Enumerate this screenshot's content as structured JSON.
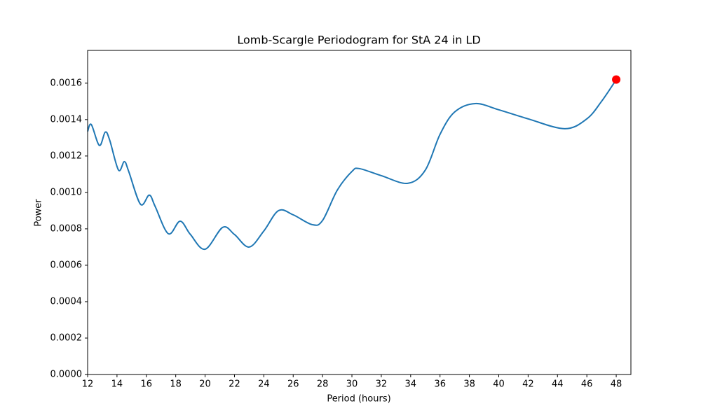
{
  "chart_data": {
    "type": "line",
    "title": "Lomb-Scargle Periodogram for StA 24 in LD",
    "x_label": "Period (hours)",
    "y_label": "Power",
    "x": [
      12.0,
      12.25,
      12.8,
      13.2,
      13.5,
      14.1,
      14.5,
      14.8,
      15.6,
      16.2,
      16.6,
      17.5,
      18.3,
      19.0,
      20.0,
      21.2,
      22.0,
      23.0,
      24.0,
      25.0,
      26.0,
      27.3,
      28.0,
      29.0,
      30.0,
      30.5,
      32.0,
      33.8,
      35.0,
      36.0,
      37.0,
      38.4,
      40.0,
      42.0,
      44.5,
      46.0,
      47.0,
      48.0
    ],
    "series": [
      {
        "color": "#1f77b4",
        "values": [
          0.001335,
          0.001373,
          0.001258,
          0.001331,
          0.001288,
          0.001123,
          0.001169,
          0.001115,
          0.000935,
          0.000985,
          0.000923,
          0.000773,
          0.000842,
          0.000769,
          0.000688,
          0.000808,
          0.000769,
          0.0007,
          0.000788,
          0.0009,
          0.000877,
          0.000823,
          0.000846,
          0.001012,
          0.001115,
          0.001131,
          0.001092,
          0.00105,
          0.001123,
          0.001319,
          0.001442,
          0.001488,
          0.001454,
          0.001404,
          0.00135,
          0.001404,
          0.0015,
          0.001619
        ]
      }
    ],
    "highlight": {
      "x": 48,
      "y": 0.00162,
      "color": "#ff0000"
    },
    "xlim": [
      12,
      49
    ],
    "ylim": [
      0,
      0.00178
    ],
    "xticks": [
      12,
      14,
      16,
      18,
      20,
      22,
      24,
      26,
      28,
      30,
      32,
      34,
      36,
      38,
      40,
      42,
      44,
      46,
      48
    ],
    "yticks": [
      {
        "value": 0,
        "label": "0.0000"
      },
      0.0002,
      0.0004,
      0.0006,
      0.0008,
      {
        "value": 0.001,
        "label": "0.0010"
      },
      0.0012,
      0.0014,
      0.0016
    ]
  }
}
